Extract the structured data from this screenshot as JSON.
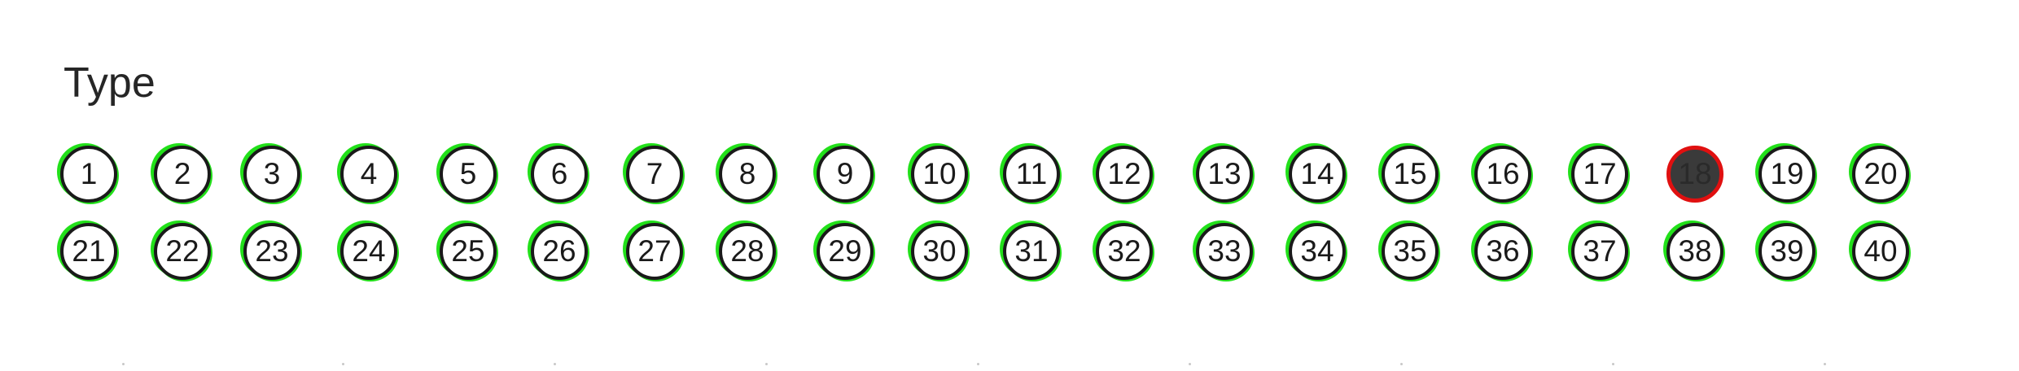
{
  "section": {
    "title": "Type"
  },
  "selector": {
    "selected": "18",
    "colors": {
      "ring": "#1a1a1a",
      "accent": "#22e01a",
      "selected_fill": "#3a3a3a",
      "selected_ring": "#e01010"
    },
    "rows": [
      [
        "1",
        "2",
        "3",
        "4",
        "5",
        "6",
        "7",
        "8",
        "9",
        "10",
        "11",
        "12",
        "13",
        "14",
        "15",
        "16",
        "17",
        "18",
        "19",
        "20"
      ],
      [
        "21",
        "22",
        "23",
        "24",
        "25",
        "26",
        "27",
        "28",
        "29",
        "30",
        "31",
        "32",
        "33",
        "34",
        "35",
        "36",
        "37",
        "38",
        "39",
        "40"
      ]
    ]
  }
}
